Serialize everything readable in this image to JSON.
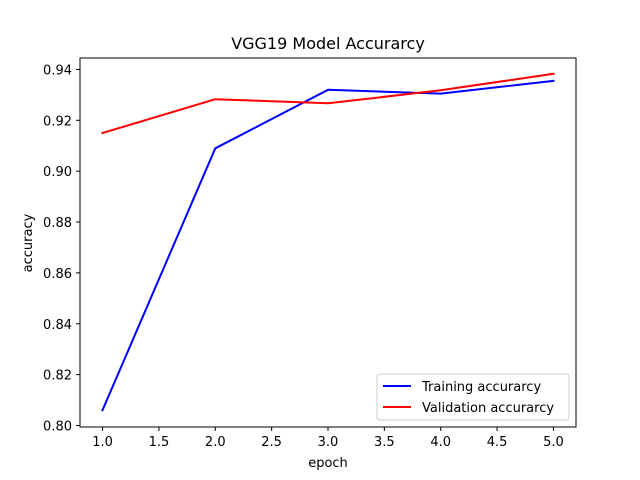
{
  "chart_data": {
    "type": "line",
    "title": "VGG19 Model Accurarcy",
    "xlabel": "epoch",
    "ylabel": "accuracy",
    "x": [
      1,
      2,
      3,
      4,
      5
    ],
    "xlim": [
      0.8,
      5.2
    ],
    "ylim": [
      0.7994,
      0.9445
    ],
    "xticks": [
      "1.0",
      "1.5",
      "2.0",
      "2.5",
      "3.0",
      "3.5",
      "4.0",
      "4.5",
      "5.0"
    ],
    "yticks": [
      "0.80",
      "0.82",
      "0.84",
      "0.86",
      "0.88",
      "0.90",
      "0.92",
      "0.94"
    ],
    "grid": false,
    "legend_position": "lower right",
    "series": [
      {
        "name": "Training accurarcy",
        "color": "#0000ff",
        "values": [
          0.806,
          0.909,
          0.932,
          0.9305,
          0.9355
        ]
      },
      {
        "name": "Validation accurarcy",
        "color": "#ff0000",
        "values": [
          0.915,
          0.9283,
          0.9267,
          0.9318,
          0.9383
        ]
      }
    ]
  }
}
